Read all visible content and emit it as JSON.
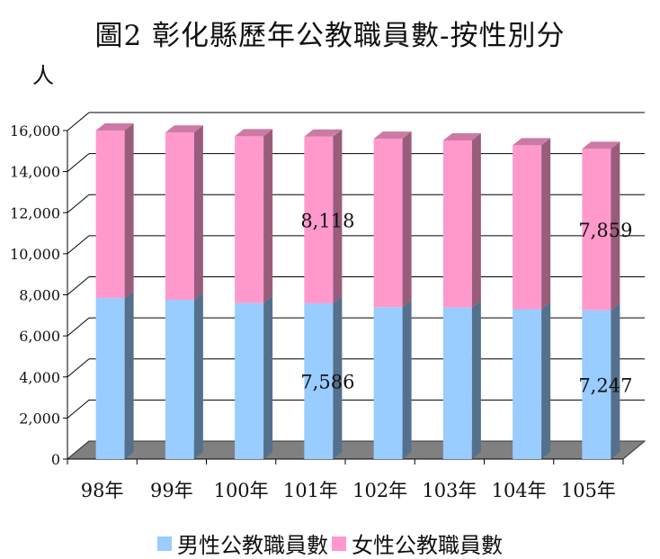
{
  "chart_data": {
    "type": "bar",
    "stacked": true,
    "title": "圖2 彰化縣歷年公教職員數-按性別分",
    "ylabel": "人",
    "categories": [
      "98年",
      "99年",
      "100年",
      "101年",
      "102年",
      "103年",
      "104年",
      "105年"
    ],
    "ylim": [
      0,
      16000
    ],
    "yticks": [
      "0",
      "2,000",
      "4,000",
      "6,000",
      "8,000",
      "10,000",
      "12,000",
      "14,000",
      "16,000"
    ],
    "grid": true,
    "legend_position": "bottom",
    "series": [
      {
        "name": "男性公教職員數",
        "color": "#99CCFF",
        "values": [
          7840,
          7760,
          7600,
          7586,
          7400,
          7380,
          7300,
          7247
        ]
      },
      {
        "name": "女性公教職員數",
        "color": "#FF99CC",
        "values": [
          8160,
          8140,
          8120,
          8118,
          8200,
          8140,
          7980,
          7859
        ]
      }
    ],
    "data_labels": [
      {
        "series": 0,
        "index": 3,
        "text": "7,586"
      },
      {
        "series": 1,
        "index": 3,
        "text": "8,118"
      },
      {
        "series": 0,
        "index": 7,
        "text": "7,247"
      },
      {
        "series": 1,
        "index": 7,
        "text": "7,859"
      }
    ]
  }
}
